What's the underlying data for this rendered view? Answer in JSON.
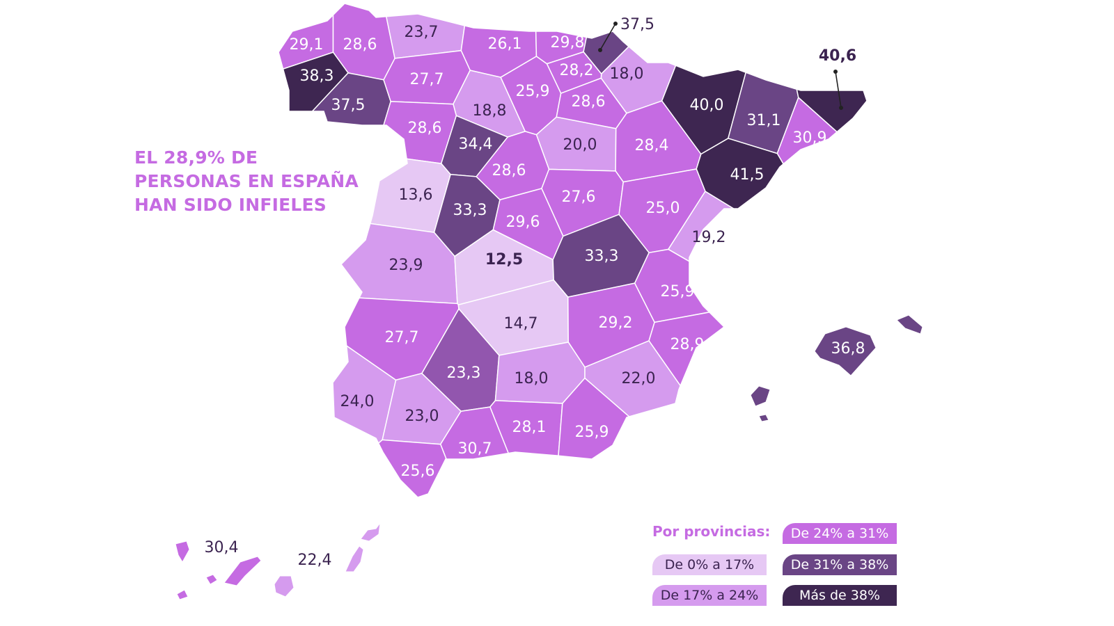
{
  "headline": [
    "EL 28,9% DE",
    "PERSONAS EN ESPAÑA",
    "HAN SIDO INFIELES"
  ],
  "legend": {
    "title": "Por provincias:",
    "categories": [
      {
        "key": "a",
        "label": "De 0% a 17%",
        "color": "#e6c8f4",
        "text_color": "#3b2350"
      },
      {
        "key": "b",
        "label": "De 17% a 24%",
        "color": "#d59bee",
        "text_color": "#3b2350"
      },
      {
        "key": "c",
        "label": "De 24% a 31%",
        "color": "#c56be2",
        "text_color": "#ffffff"
      },
      {
        "key": "d",
        "label": "De 31% a 38%",
        "color": "#6a4585",
        "text_color": "#ffffff"
      },
      {
        "key": "e",
        "label": "Más de 38%",
        "color": "#3e2651",
        "text_color": "#ffffff"
      }
    ]
  },
  "colors": {
    "border": "#ffffff",
    "dark_text": "#3b2350",
    "cordoba_fill": "#9256ae"
  },
  "provinces": [
    {
      "id": "coruna",
      "value": "29,1",
      "cat": "c"
    },
    {
      "id": "lugo",
      "value": "28,6",
      "cat": "c"
    },
    {
      "id": "asturias",
      "value": "23,7",
      "cat": "b"
    },
    {
      "id": "cantabria",
      "value": "26,1",
      "cat": "c"
    },
    {
      "id": "vizcaya",
      "value": "29,8",
      "cat": "c"
    },
    {
      "id": "guipuzcoa",
      "value": "37,5",
      "cat": "d"
    },
    {
      "id": "navarra",
      "value": "18,0",
      "cat": "b"
    },
    {
      "id": "alava",
      "value": "28,2",
      "cat": "c"
    },
    {
      "id": "pontevedra",
      "value": "38,3",
      "cat": "e"
    },
    {
      "id": "ourense",
      "value": "37,5",
      "cat": "d"
    },
    {
      "id": "leon",
      "value": "27,7",
      "cat": "c"
    },
    {
      "id": "palencia",
      "value": "18,8",
      "cat": "b"
    },
    {
      "id": "burgos",
      "value": "25,9",
      "cat": "c"
    },
    {
      "id": "rioja",
      "value": "28,6",
      "cat": "c"
    },
    {
      "id": "zamora",
      "value": "28,6",
      "cat": "c"
    },
    {
      "id": "valladolid",
      "value": "34,4",
      "cat": "d"
    },
    {
      "id": "soria",
      "value": "20,0",
      "cat": "b"
    },
    {
      "id": "huesca",
      "value": "40,0",
      "cat": "e"
    },
    {
      "id": "lleida",
      "value": "31,1",
      "cat": "d"
    },
    {
      "id": "girona",
      "value": "40,6",
      "cat": "e"
    },
    {
      "id": "barcelona",
      "value": "30,9",
      "cat": "c"
    },
    {
      "id": "zaragoza",
      "value": "28,4",
      "cat": "c"
    },
    {
      "id": "tarragona",
      "value": "41,5",
      "cat": "e"
    },
    {
      "id": "salamanca",
      "value": "13,6",
      "cat": "a"
    },
    {
      "id": "segovia",
      "value": "28,6",
      "cat": "c"
    },
    {
      "id": "avila",
      "value": "33,3",
      "cat": "d"
    },
    {
      "id": "guadalajara",
      "value": "27,6",
      "cat": "c"
    },
    {
      "id": "teruel",
      "value": "25,0",
      "cat": "c"
    },
    {
      "id": "castellon",
      "value": "19,2",
      "cat": "b"
    },
    {
      "id": "madrid",
      "value": "29,6",
      "cat": "c"
    },
    {
      "id": "caceres",
      "value": "23,9",
      "cat": "b"
    },
    {
      "id": "toledo",
      "value": "12,5",
      "cat": "a"
    },
    {
      "id": "cuenca",
      "value": "33,3",
      "cat": "d"
    },
    {
      "id": "valencia",
      "value": "25,9",
      "cat": "c"
    },
    {
      "id": "badajoz",
      "value": "27,7",
      "cat": "c"
    },
    {
      "id": "ciudadreal",
      "value": "14,7",
      "cat": "a"
    },
    {
      "id": "albacete",
      "value": "29,2",
      "cat": "c"
    },
    {
      "id": "alicante",
      "value": "28,9",
      "cat": "c"
    },
    {
      "id": "cordoba",
      "value": "23,3",
      "cat": "cordoba"
    },
    {
      "id": "jaen",
      "value": "18,0",
      "cat": "b"
    },
    {
      "id": "murcia",
      "value": "22,0",
      "cat": "b"
    },
    {
      "id": "huelva",
      "value": "24,0",
      "cat": "b"
    },
    {
      "id": "sevilla",
      "value": "23,0",
      "cat": "b"
    },
    {
      "id": "granada",
      "value": "28,1",
      "cat": "c"
    },
    {
      "id": "almeria",
      "value": "25,9",
      "cat": "c"
    },
    {
      "id": "malaga",
      "value": "30,7",
      "cat": "c"
    },
    {
      "id": "cadiz",
      "value": "25,6",
      "cat": "c"
    },
    {
      "id": "baleares",
      "value": "36,8",
      "cat": "d"
    },
    {
      "id": "tenerife",
      "value": "30,4",
      "cat": "c"
    },
    {
      "id": "laspalmas",
      "value": "22,4",
      "cat": "b"
    }
  ]
}
